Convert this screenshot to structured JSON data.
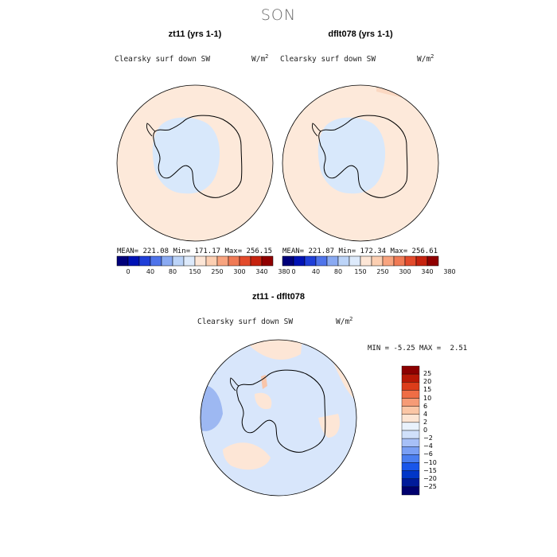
{
  "title": "SON",
  "panels": [
    {
      "title": "zt11 (yrs 1-1)",
      "variable": "Clearsky surf down SW",
      "units": "W/m",
      "units_sup": "2",
      "stats": "MEAN= 221.08   Min= 171.17   Max= 256.15",
      "colorbar_ticks": [
        "0",
        "40",
        "80",
        "150",
        "250",
        "300",
        "340",
        "380"
      ]
    },
    {
      "title": "dflt078 (yrs 1-1)",
      "variable": "Clearsky surf down SW",
      "units": "W/m",
      "units_sup": "2",
      "stats": "MEAN= 221.87   Min= 172.34   Max= 256.61",
      "colorbar_ticks": [
        "0",
        "40",
        "80",
        "150",
        "250",
        "300",
        "340",
        "380"
      ]
    }
  ],
  "diff": {
    "title": "zt11 - dflt078",
    "variable": "Clearsky surf down SW",
    "units": "W/m",
    "units_sup": "2",
    "min_label": "MIN =",
    "min_value": "-5.25",
    "max_label": "MAX =",
    "max_value": "2.51",
    "colorbar_ticks": [
      "25",
      "20",
      "15",
      "10",
      "6",
      "4",
      "2",
      "0",
      "−2",
      "−4",
      "−6",
      "−10",
      "−15",
      "−20",
      "−25"
    ]
  },
  "colors": {
    "abs_scale": [
      "#00007a",
      "#0012b5",
      "#1f3fd8",
      "#4f74ea",
      "#8aaaf2",
      "#bcd4f8",
      "#ddeafb",
      "#fde6d6",
      "#fccfb2",
      "#f8a47f",
      "#f07a55",
      "#e34b2c",
      "#c6230f",
      "#900000"
    ],
    "diff_scale": [
      "#00006e",
      "#001b9a",
      "#0036c8",
      "#1956ea",
      "#4a7ef0",
      "#7a9ff4",
      "#a7c0f7",
      "#d0e0fa",
      "#e9f2fc",
      "#fde5d3",
      "#fbc6a5",
      "#f69b76",
      "#ef6d45",
      "#dc3d1a",
      "#b71805",
      "#8c0000"
    ],
    "ocean_abs": "#fde9da",
    "ice_abs": "#d8e8fb",
    "diff_neg": "#d8e6fb",
    "diff_pos": "#fde6d6",
    "diff_dark": "#9db8f2"
  }
}
